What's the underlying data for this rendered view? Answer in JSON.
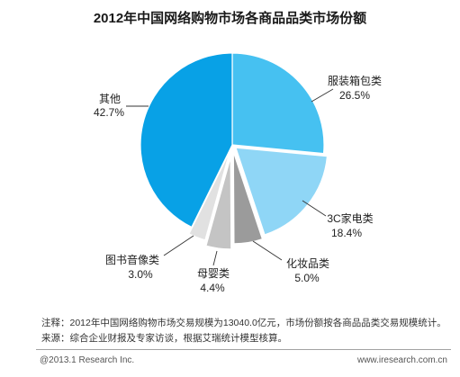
{
  "chart_data": {
    "type": "pie",
    "title": "2012年中国网络购物市场各商品品类市场份额",
    "unit": "%",
    "slices": [
      {
        "label": "服装箱包类",
        "value": 26.5,
        "color": "#46c1f1"
      },
      {
        "label": "3C家电类",
        "value": 18.4,
        "color": "#8fd6f6"
      },
      {
        "label": "化妆品类",
        "value": 5.0,
        "color": "#9b9b9b"
      },
      {
        "label": "母婴类",
        "value": 4.4,
        "color": "#c4c4c4"
      },
      {
        "label": "图书音像类",
        "value": 3.0,
        "color": "#e1e1e1"
      },
      {
        "label": "其他",
        "value": 42.7,
        "color": "#08a1e6"
      }
    ]
  },
  "notes": {
    "note": "注释：2012年中国网络购物市场交易规模为13040.0亿元，市场份额按各商品品类交易规模统计。",
    "source": "来源：综合企业财报及专家访谈，根据艾瑞统计模型核算。"
  },
  "footer": {
    "copyright": "@2013.1 Research Inc.",
    "website": "www.iresearch.com.cn"
  }
}
